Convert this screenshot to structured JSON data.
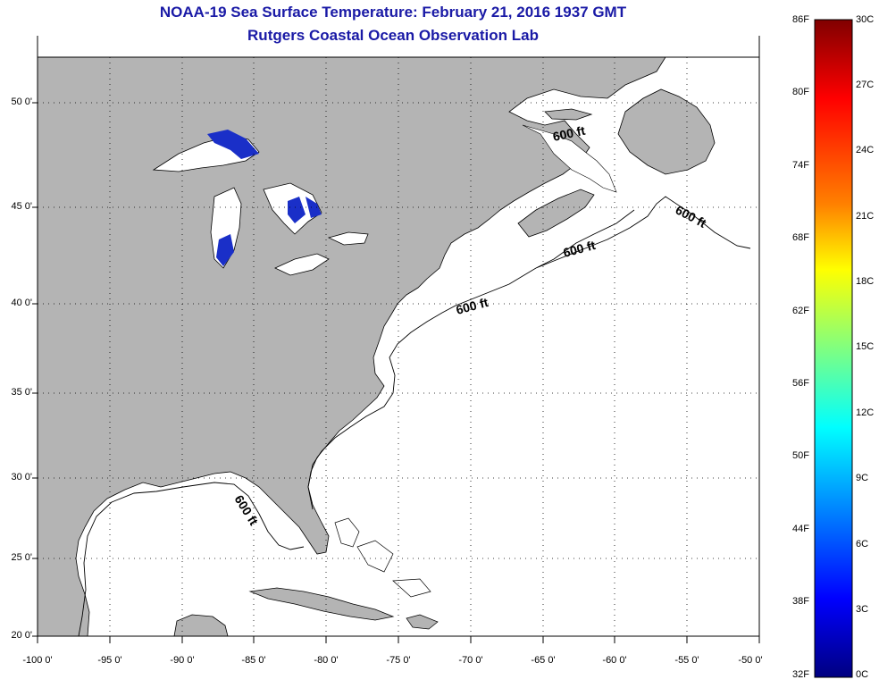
{
  "title": "NOAA-19 Sea Surface Temperature:  February 21, 2016 1937 GMT",
  "subtitle": "Rutgers Coastal Ocean Observation Lab",
  "map": {
    "lat_labels": [
      "50 0'",
      "45 0'",
      "40 0'",
      "35 0'",
      "30 0'",
      "25 0'",
      "20 0'"
    ],
    "lon_labels": [
      "-100 0'",
      "-95 0'",
      "-90 0'",
      "-85 0'",
      "-80 0'",
      "-75 0'",
      "-70 0'",
      "-65 0'",
      "-60 0'",
      "-55 0'",
      "-50 0'"
    ],
    "contour_label": "600 ft",
    "colors": {
      "land": "#b4b4b4",
      "ocean": "#ffffff",
      "title": "#1a1aa6",
      "lake_sst": "#1a2fc8",
      "grid": "#000000"
    }
  },
  "colorbar": {
    "fahrenheit_labels": [
      "86F",
      "80F",
      "74F",
      "68F",
      "62F",
      "56F",
      "50F",
      "44F",
      "38F",
      "32F"
    ],
    "celsius_labels": [
      "30C",
      "27C",
      "24C",
      "21C",
      "18C",
      "15C",
      "12C",
      "9C",
      "6C",
      "3C",
      "0C"
    ],
    "gradient_colors": [
      "#800000",
      "#ff0000",
      "#ff8000",
      "#ffff00",
      "#80ff80",
      "#00ffff",
      "#0080ff",
      "#0000ff",
      "#000080"
    ]
  }
}
